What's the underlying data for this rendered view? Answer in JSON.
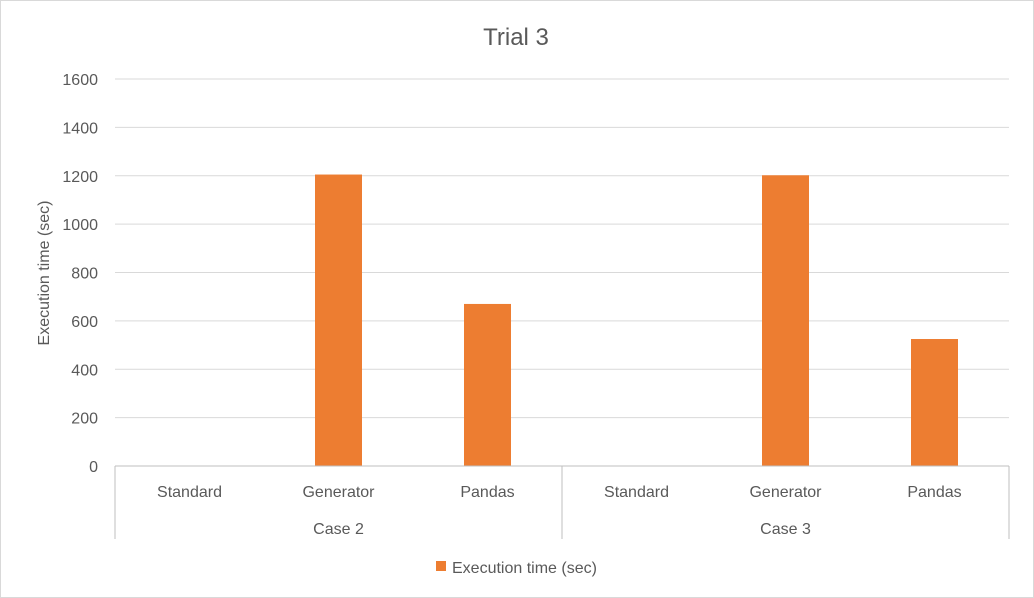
{
  "chart_data": {
    "type": "bar",
    "title": "Trial 3",
    "ylabel": "Execution time (sec)",
    "xlabel": "",
    "ylim": [
      0,
      1600
    ],
    "yticks": [
      0,
      200,
      400,
      600,
      800,
      1000,
      1200,
      1400,
      1600
    ],
    "grid": true,
    "legend_position": "bottom",
    "groups": [
      "Case 2",
      "Case 3"
    ],
    "categories": [
      "Standard",
      "Generator",
      "Pandas",
      "Standard",
      "Generator",
      "Pandas"
    ],
    "series": [
      {
        "name": "Execution time (sec)",
        "color": "#ed7d31",
        "values": [
          0,
          1205,
          670,
          0,
          1202,
          525
        ]
      }
    ]
  }
}
